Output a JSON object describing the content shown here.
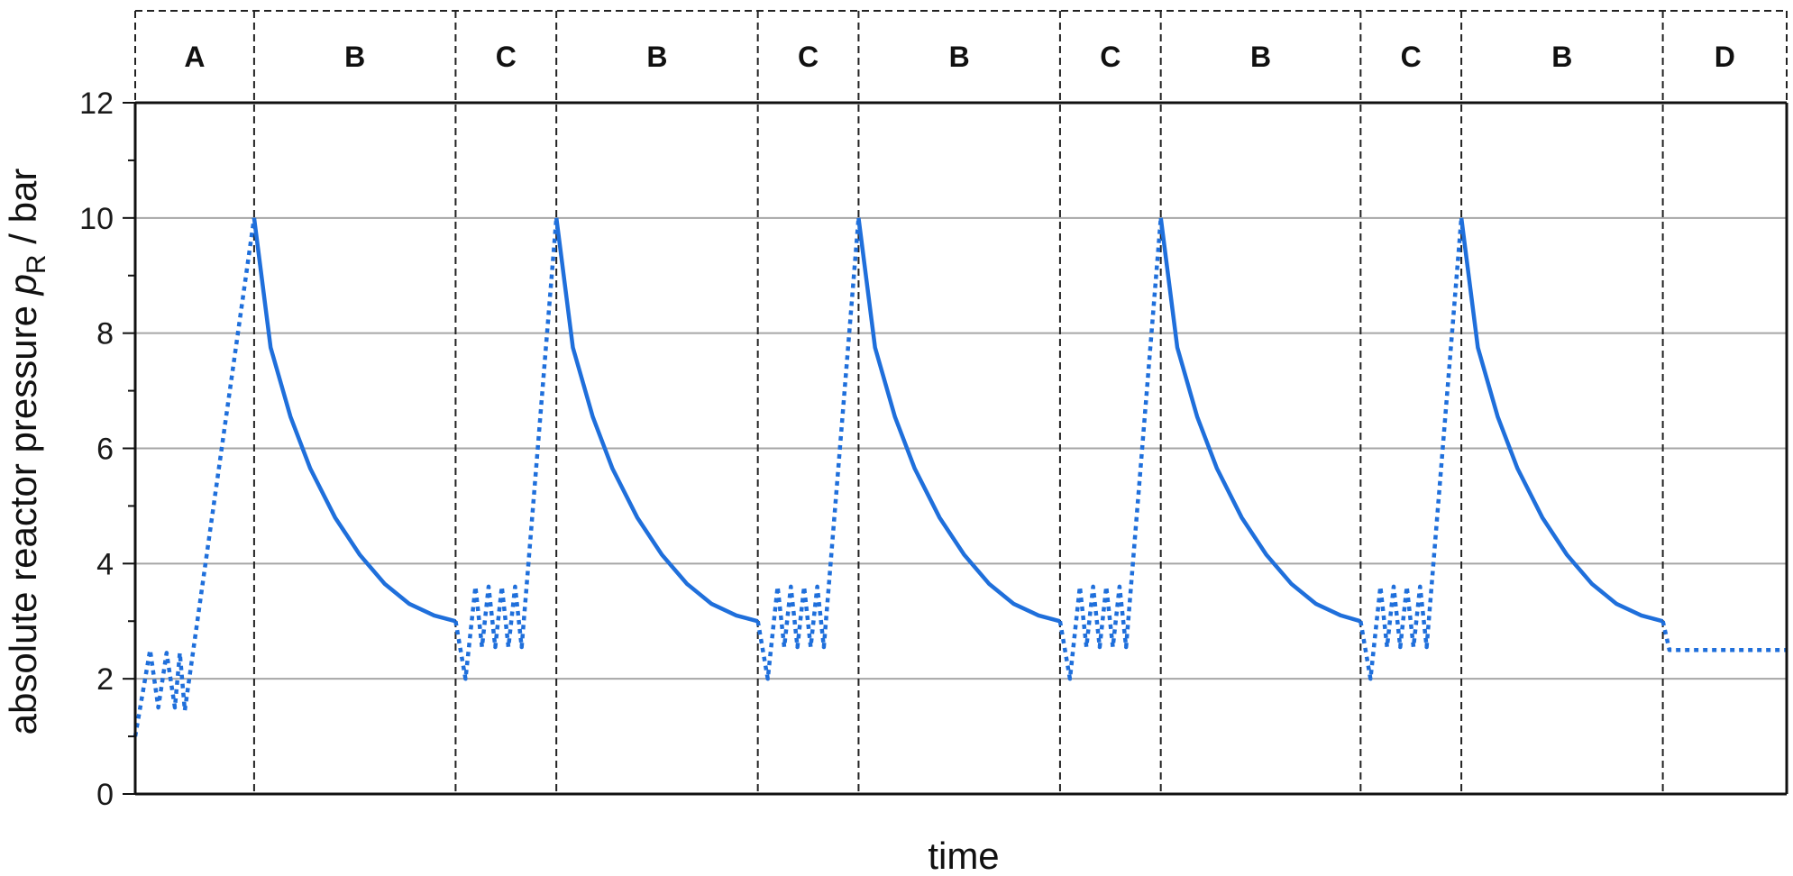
{
  "chart_data": {
    "type": "line",
    "xlabel": "time",
    "ylabel": {
      "pre": "absolute reactor pressure ",
      "symbol": "p",
      "subscript": "R",
      "post": " / bar"
    },
    "ylim": [
      0,
      12
    ],
    "yticks": [
      0,
      2,
      4,
      6,
      8,
      10,
      12
    ],
    "xlim": [
      0,
      100
    ],
    "grid": {
      "horizontal": true,
      "values": [
        2,
        4,
        6,
        8,
        10
      ]
    },
    "line_color": "#1f6fdb",
    "phase_bands": [
      {
        "label": "A",
        "start": 0,
        "end": 7.2
      },
      {
        "label": "B",
        "start": 7.2,
        "end": 19.4
      },
      {
        "label": "C",
        "start": 19.4,
        "end": 25.5
      },
      {
        "label": "B",
        "start": 25.5,
        "end": 37.7
      },
      {
        "label": "C",
        "start": 37.7,
        "end": 43.8
      },
      {
        "label": "B",
        "start": 43.8,
        "end": 56.0
      },
      {
        "label": "C",
        "start": 56.0,
        "end": 62.1
      },
      {
        "label": "B",
        "start": 62.1,
        "end": 74.2
      },
      {
        "label": "C",
        "start": 74.2,
        "end": 80.3
      },
      {
        "label": "B",
        "start": 80.3,
        "end": 92.5
      },
      {
        "label": "D",
        "start": 92.5,
        "end": 100
      }
    ],
    "series": [
      {
        "style": "dotted",
        "x": [
          0,
          0.9,
          1.4,
          1.9,
          2.4,
          2.7,
          3.0,
          7.2
        ],
        "y": [
          1.0,
          2.5,
          1.5,
          2.45,
          1.5,
          2.45,
          1.45,
          10.0
        ]
      },
      {
        "style": "solid",
        "x": [
          7.2,
          8.2,
          9.4,
          10.6,
          12.1,
          13.6,
          15.1,
          16.6,
          18.1,
          19.4
        ],
        "y": [
          10.0,
          7.75,
          6.55,
          5.65,
          4.8,
          4.15,
          3.65,
          3.3,
          3.1,
          3.0
        ]
      },
      {
        "style": "dotted",
        "x": [
          19.4,
          20.0,
          20.6,
          21.0,
          21.4,
          21.8,
          22.2,
          22.6,
          23.0,
          23.4,
          25.5
        ],
        "y": [
          3.0,
          2.0,
          3.6,
          2.55,
          3.6,
          2.55,
          3.6,
          2.55,
          3.6,
          2.55,
          10.0
        ]
      },
      {
        "style": "solid",
        "x": [
          25.5,
          26.5,
          27.7,
          28.9,
          30.4,
          31.9,
          33.4,
          34.9,
          36.4,
          37.7
        ],
        "y": [
          10.0,
          7.75,
          6.55,
          5.65,
          4.8,
          4.15,
          3.65,
          3.3,
          3.1,
          3.0
        ]
      },
      {
        "style": "dotted",
        "x": [
          37.7,
          38.3,
          38.9,
          39.3,
          39.7,
          40.1,
          40.5,
          40.9,
          41.3,
          41.7,
          43.8
        ],
        "y": [
          3.0,
          2.0,
          3.6,
          2.55,
          3.6,
          2.55,
          3.6,
          2.55,
          3.6,
          2.55,
          10.0
        ]
      },
      {
        "style": "solid",
        "x": [
          43.8,
          44.8,
          46.0,
          47.2,
          48.7,
          50.2,
          51.7,
          53.2,
          54.7,
          56.0
        ],
        "y": [
          10.0,
          7.75,
          6.55,
          5.65,
          4.8,
          4.15,
          3.65,
          3.3,
          3.1,
          3.0
        ]
      },
      {
        "style": "dotted",
        "x": [
          56.0,
          56.6,
          57.2,
          57.6,
          58.0,
          58.4,
          58.8,
          59.2,
          59.6,
          60.0,
          62.1
        ],
        "y": [
          3.0,
          2.0,
          3.6,
          2.55,
          3.6,
          2.55,
          3.6,
          2.55,
          3.6,
          2.55,
          10.0
        ]
      },
      {
        "style": "solid",
        "x": [
          62.1,
          63.1,
          64.3,
          65.5,
          67.0,
          68.5,
          70.0,
          71.5,
          73.0,
          74.2
        ],
        "y": [
          10.0,
          7.75,
          6.55,
          5.65,
          4.8,
          4.15,
          3.65,
          3.3,
          3.1,
          3.0
        ]
      },
      {
        "style": "dotted",
        "x": [
          74.2,
          74.8,
          75.4,
          75.8,
          76.2,
          76.6,
          77.0,
          77.4,
          77.8,
          78.2,
          80.3
        ],
        "y": [
          3.0,
          2.0,
          3.6,
          2.55,
          3.6,
          2.55,
          3.6,
          2.55,
          3.6,
          2.55,
          10.0
        ]
      },
      {
        "style": "solid",
        "x": [
          80.3,
          81.3,
          82.5,
          83.7,
          85.2,
          86.7,
          88.2,
          89.7,
          91.2,
          92.5
        ],
        "y": [
          10.0,
          7.75,
          6.55,
          5.65,
          4.8,
          4.15,
          3.65,
          3.3,
          3.1,
          3.0
        ]
      },
      {
        "style": "dotted",
        "x": [
          92.5,
          92.9,
          100
        ],
        "y": [
          3.0,
          2.5,
          2.5
        ]
      }
    ]
  }
}
